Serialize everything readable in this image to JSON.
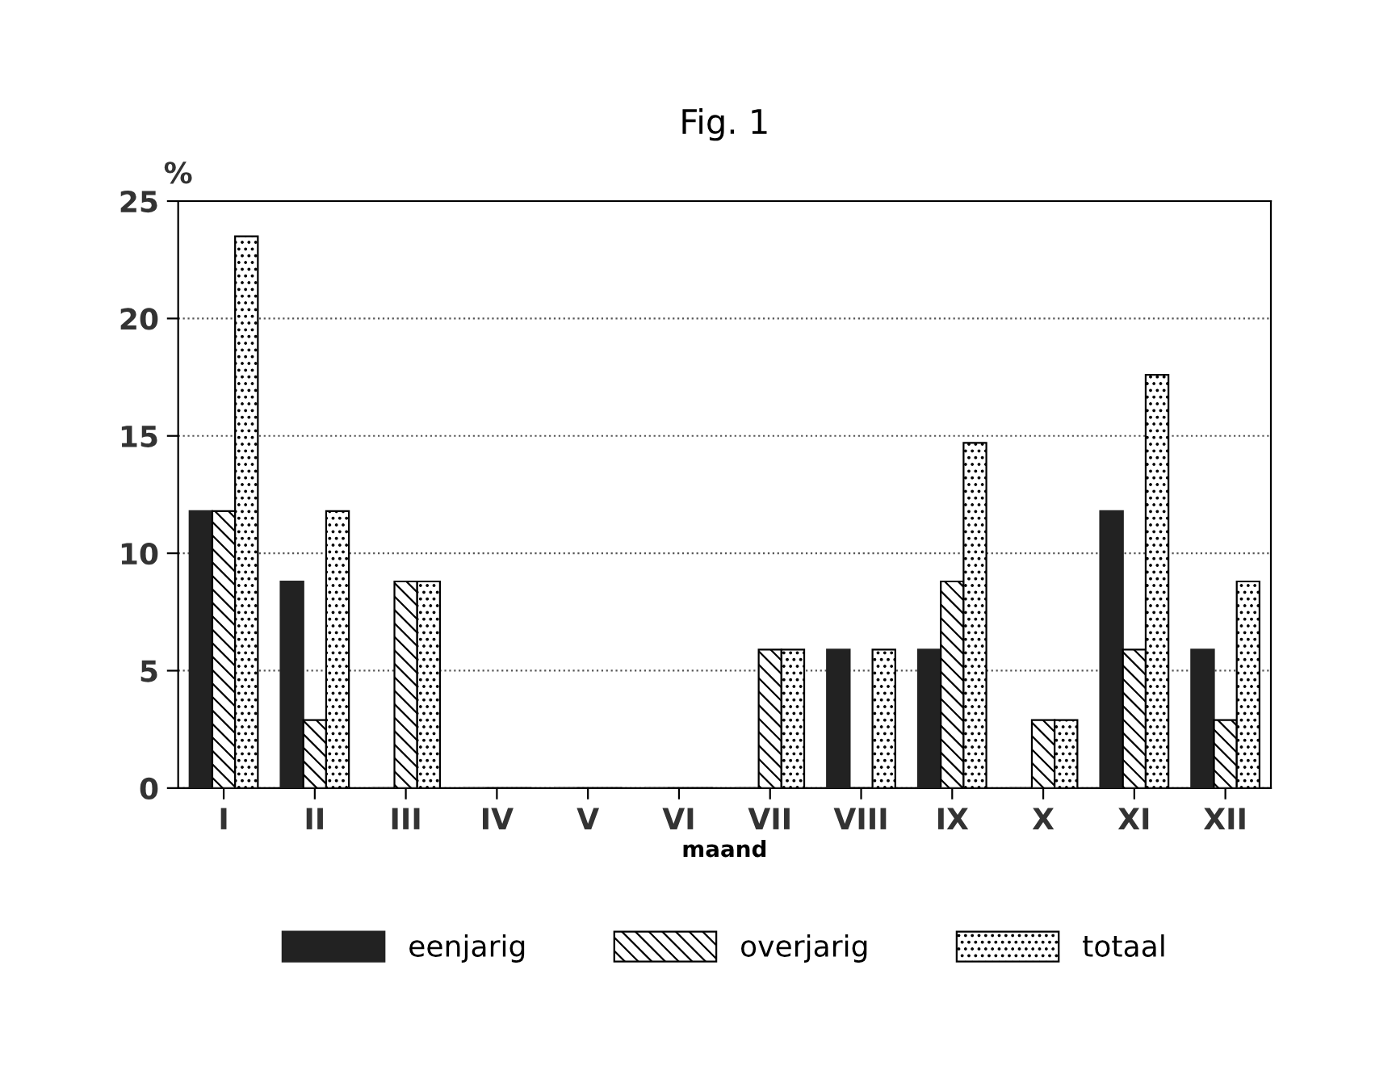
{
  "chart_data": {
    "type": "bar",
    "title": "Fig. 1",
    "ylabel": "%",
    "xlabel": "maand",
    "categories": [
      "I",
      "II",
      "III",
      "IV",
      "V",
      "VI",
      "VII",
      "VIII",
      "IX",
      "X",
      "XI",
      "XII"
    ],
    "series": [
      {
        "name": "eenjarig",
        "color": "#222222",
        "values": [
          11.8,
          8.8,
          0,
          0,
          0,
          0,
          0,
          5.9,
          5.9,
          0,
          11.8,
          5.9
        ]
      },
      {
        "name": "overjarig",
        "color": "#000000",
        "values": [
          11.8,
          2.9,
          8.8,
          0,
          0,
          0,
          5.9,
          0,
          8.8,
          2.9,
          5.9,
          2.9
        ]
      },
      {
        "name": "totaal",
        "color": "#000000",
        "values": [
          23.5,
          11.8,
          8.8,
          0,
          0,
          0,
          5.9,
          5.9,
          14.7,
          2.9,
          17.6,
          8.8
        ]
      }
    ],
    "ylim": [
      0,
      25
    ],
    "yticks": [
      0,
      5,
      10,
      15,
      20,
      25
    ],
    "grid": "y",
    "legend": "bottom"
  }
}
